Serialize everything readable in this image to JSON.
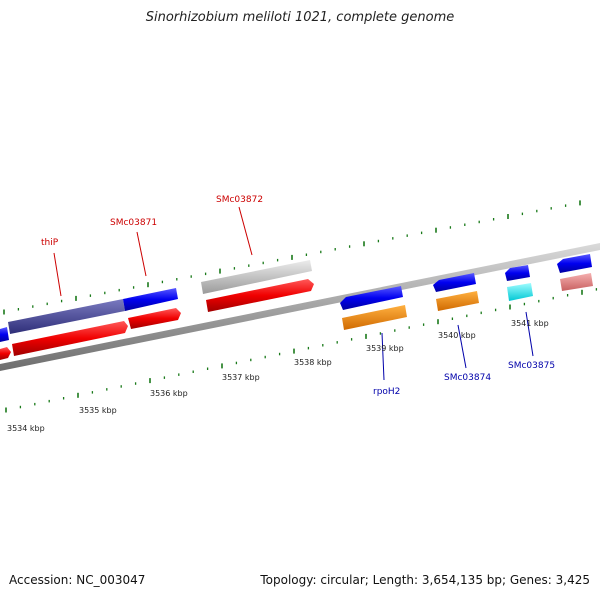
{
  "title": "Sinorhizobium meliloti 1021, complete genome",
  "footer": {
    "accession": "Accession: NC_003047",
    "summary": "Topology: circular; Length: 3,654,135 bp; Genes: 3,425"
  },
  "ruler": {
    "labels": [
      "3534 kbp",
      "3535 kbp",
      "3536 kbp",
      "3537 kbp",
      "3538 kbp",
      "3539 kbp",
      "3540 kbp",
      "3541 kbp"
    ]
  },
  "genes": {
    "upper": [
      {
        "name": "thiP",
        "color": "#cc0000"
      },
      {
        "name": "SMc03871",
        "color": "#cc0000"
      },
      {
        "name": "SMc03872",
        "color": "#cc0000"
      }
    ],
    "lower": [
      {
        "name": "rpoH2",
        "color": "#0000aa"
      },
      {
        "name": "SMc03874",
        "color": "#0000aa"
      },
      {
        "name": "SMc03875",
        "color": "#0000aa"
      }
    ]
  },
  "colors": {
    "backbone": "#8a8a8a",
    "tick": "#1a7a1a",
    "forward_cds": "#ff0000",
    "reverse_cds": "#0000ee",
    "pseudo": "#bdbdbd",
    "rna": "#ff8c00",
    "misc": "#00e5ee",
    "pale": "#e88080",
    "operon": "#4b4b9a"
  }
}
